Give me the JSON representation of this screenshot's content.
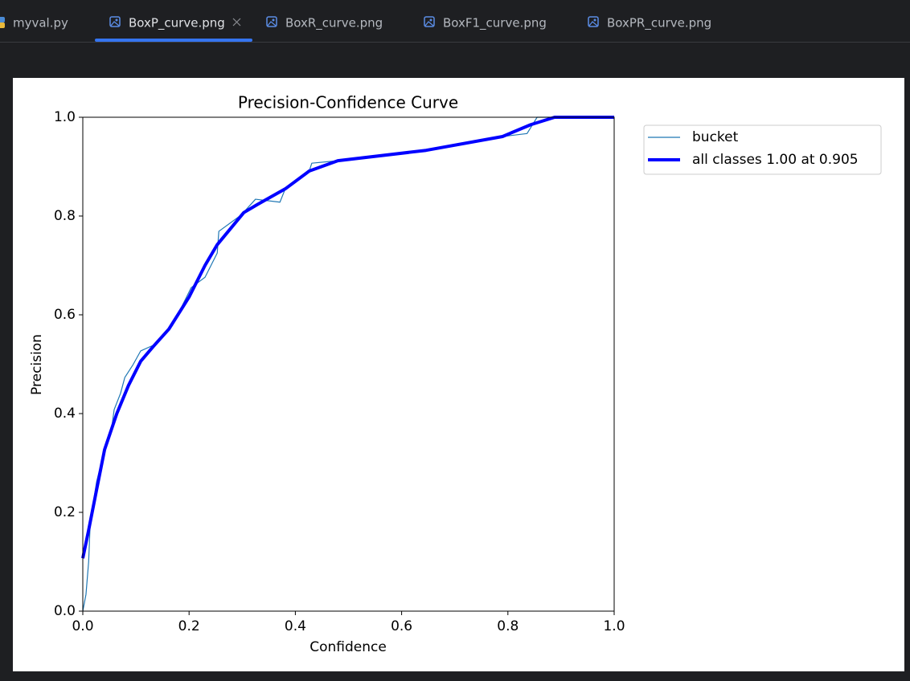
{
  "tabs": [
    "myval.py",
    "BoxP_curve.png",
    "BoxR_curve.png",
    "BoxF1_curve.png",
    "BoxPR_curve.png"
  ],
  "active_tab": 1,
  "chart_data": {
    "type": "line",
    "title": "Precision-Confidence Curve",
    "x_label": "Confidence",
    "y_label": "Precision",
    "xlim": [
      0,
      1
    ],
    "ylim": [
      0,
      1
    ],
    "xticks": [
      {
        "value": 0,
        "label": "0.0"
      },
      0.2,
      0.4,
      0.6,
      0.8,
      {
        "value": 1,
        "label": "1.0"
      }
    ],
    "yticks": [
      {
        "value": 0,
        "label": "0.0"
      },
      0.2,
      0.4,
      0.6,
      0.8,
      {
        "value": 1,
        "label": "1.0"
      }
    ],
    "grid": false,
    "legend": "right",
    "series": [
      {
        "name": "bucket",
        "color": "#1f77b4",
        "width": 1.2,
        "x": [
          0,
          0.006,
          0.011,
          0.014,
          0.026,
          0.041,
          0.053,
          0.059,
          0.071,
          0.079,
          0.094,
          0.109,
          0.132,
          0.169,
          0.204,
          0.23,
          0.253,
          0.256,
          0.298,
          0.325,
          0.371,
          0.381,
          0.426,
          0.431,
          0.48,
          0.646,
          0.79,
          0.836,
          0.855,
          1.0
        ],
        "values": [
          0,
          0.034,
          0.1,
          0.18,
          0.262,
          0.327,
          0.36,
          0.408,
          0.441,
          0.473,
          0.498,
          0.527,
          0.538,
          0.579,
          0.655,
          0.676,
          0.725,
          0.769,
          0.802,
          0.834,
          0.828,
          0.855,
          0.891,
          0.907,
          0.912,
          0.933,
          0.961,
          0.967,
          1.0,
          1.0
        ]
      },
      {
        "name": "all classes 1.00 at 0.905",
        "color": "#0000ff",
        "width": 4,
        "x": [
          0,
          0.011,
          0.026,
          0.041,
          0.064,
          0.086,
          0.109,
          0.132,
          0.162,
          0.2,
          0.23,
          0.253,
          0.303,
          0.328,
          0.381,
          0.426,
          0.48,
          0.646,
          0.79,
          0.843,
          0.888,
          1.0
        ],
        "values": [
          0.107,
          0.164,
          0.246,
          0.327,
          0.4,
          0.457,
          0.506,
          0.535,
          0.571,
          0.636,
          0.7,
          0.742,
          0.807,
          0.823,
          0.855,
          0.891,
          0.912,
          0.933,
          0.961,
          0.985,
          1.0,
          1.0
        ]
      }
    ]
  }
}
